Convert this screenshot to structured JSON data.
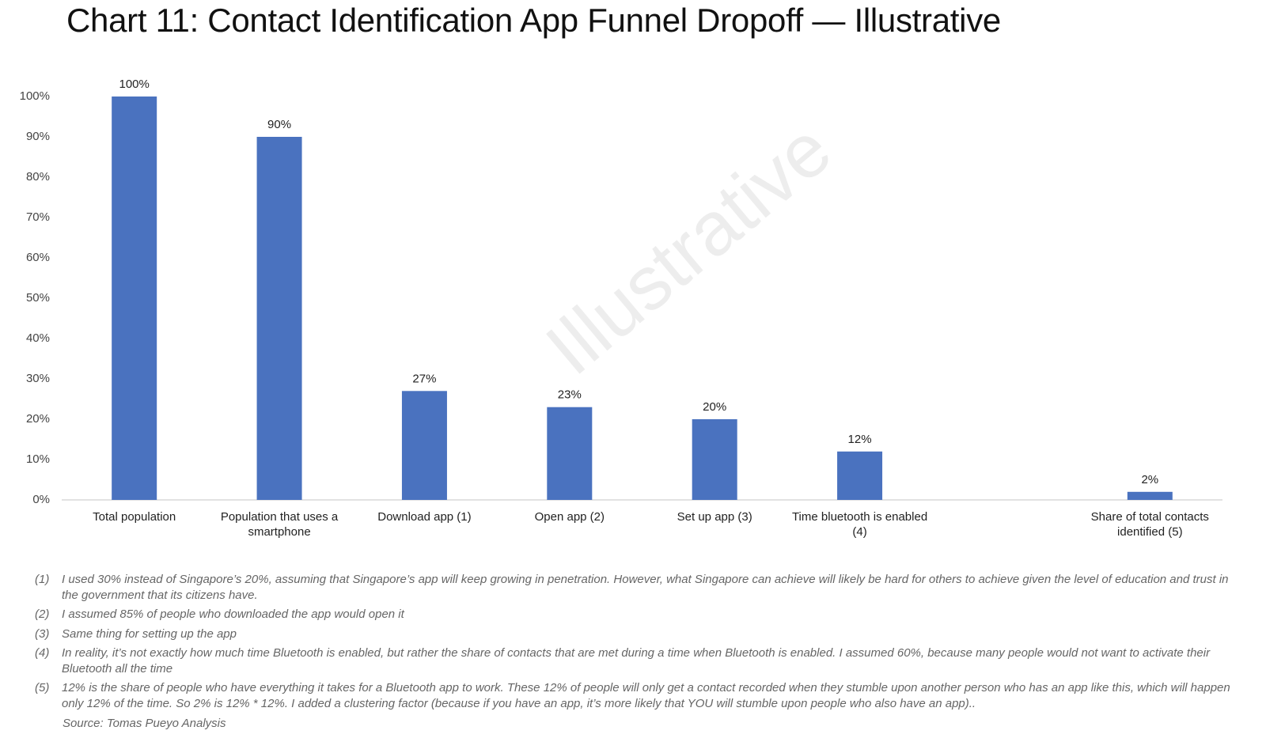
{
  "chart_data": {
    "type": "bar",
    "title": "Chart 11: Contact Identification App Funnel Dropoff — Illustrative",
    "watermark": "Illustrative",
    "categories": [
      [
        "Total population"
      ],
      [
        "Population that uses a",
        "smartphone"
      ],
      [
        "Download app (1)"
      ],
      [
        "Open app (2)"
      ],
      [
        "Set up app (3)"
      ],
      [
        "Time bluetooth is enabled",
        "(4)"
      ],
      [],
      [
        "Share of total contacts",
        "identified (5)"
      ]
    ],
    "values": [
      100,
      90,
      27,
      23,
      20,
      12,
      null,
      2
    ],
    "data_labels": [
      "100%",
      "90%",
      "27%",
      "23%",
      "20%",
      "12%",
      "",
      "2%"
    ],
    "ylim": [
      0,
      100
    ],
    "yticks": [
      0,
      10,
      20,
      30,
      40,
      50,
      60,
      70,
      80,
      90,
      100
    ],
    "ytick_labels": [
      "0%",
      "10%",
      "20%",
      "30%",
      "40%",
      "50%",
      "60%",
      "70%",
      "80%",
      "90%",
      "100%"
    ],
    "xlabel": "",
    "ylabel": "",
    "grid": false,
    "bar_color": "#4a72bf"
  },
  "footnotes": [
    {
      "num": "(1)",
      "text": "I used 30% instead of Singapore’s 20%, assuming that Singapore’s app will keep growing in penetration. However, what Singapore can achieve will likely be hard for others to achieve given the level of education and trust in the government that its citizens have."
    },
    {
      "num": "(2)",
      "text": "I assumed 85% of people who downloaded the app would open it"
    },
    {
      "num": "(3)",
      "text": "Same thing for setting up the app"
    },
    {
      "num": "(4)",
      "text": "In reality, it’s not exactly how much time Bluetooth is enabled, but rather the share of contacts that are met during a time when Bluetooth is enabled. I assumed 60%, because many people would not want to activate their Bluetooth all the time"
    },
    {
      "num": "(5)",
      "text": "12% is the share of people who have everything it takes for a Bluetooth app to work. These 12% of people will only get a contact recorded when they stumble upon another person who has an app like this, which will happen only 12% of the time. So 2% is 12% * 12%. I added a clustering factor (because if you have an app, it’s more likely that YOU will stumble upon people who also have an app).."
    }
  ],
  "source": "Source: Tomas Pueyo Analysis"
}
